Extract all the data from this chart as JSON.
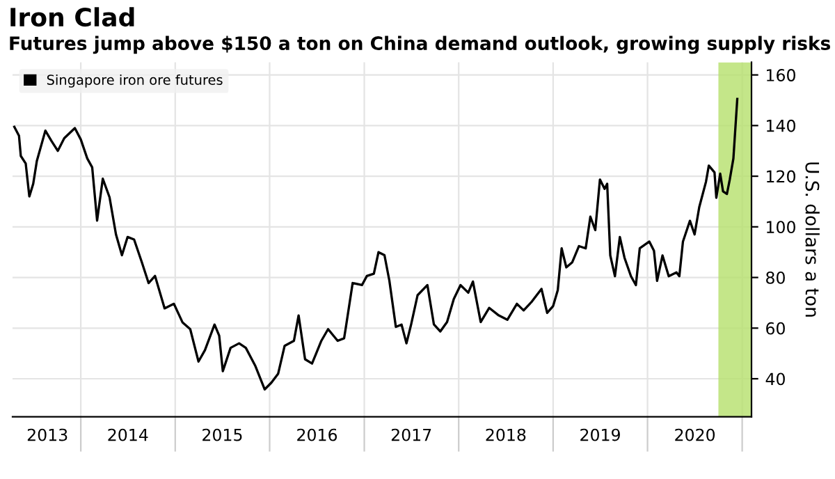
{
  "chart_data": {
    "type": "line",
    "title": "Iron Clad",
    "subtitle": "Futures jump above $150 a ton on China demand outlook, growing supply risks",
    "ylabel": "U.S. dollars a ton",
    "x": [
      "2013-04-19",
      "2013-05-07",
      "2013-05-14",
      "2013-06-02",
      "2013-06-16",
      "2013-07-01",
      "2013-07-15",
      "2013-08-17",
      "2013-09-09",
      "2013-10-04",
      "2013-10-29",
      "2013-12-09",
      "2014-01-01",
      "2014-01-26",
      "2014-02-14",
      "2014-03-05",
      "2014-03-27",
      "2014-04-22",
      "2014-05-17",
      "2014-06-09",
      "2014-07-01",
      "2014-07-26",
      "2014-08-25",
      "2014-09-20",
      "2014-10-15",
      "2014-11-21",
      "2014-12-27",
      "2015-01-29",
      "2015-02-28",
      "2015-04-01",
      "2015-04-26",
      "2015-06-02",
      "2015-06-20",
      "2015-07-04",
      "2015-08-03",
      "2015-09-05",
      "2015-10-01",
      "2015-11-07",
      "2015-12-13",
      "2016-01-08",
      "2016-02-03",
      "2016-02-28",
      "2016-04-04",
      "2016-04-22",
      "2016-05-17",
      "2016-06-13",
      "2016-07-19",
      "2016-08-14",
      "2016-09-20",
      "2016-10-15",
      "2016-10-22",
      "2016-11-17",
      "2016-12-23",
      "2017-01-11",
      "2017-02-07",
      "2017-02-25",
      "2017-03-20",
      "2017-04-08",
      "2017-05-03",
      "2017-05-25",
      "2017-06-13",
      "2017-07-01",
      "2017-07-26",
      "2017-09-02",
      "2017-09-27",
      "2017-10-22",
      "2017-11-17",
      "2017-12-13",
      "2018-01-08",
      "2018-02-07",
      "2018-02-25",
      "2018-03-27",
      "2018-04-29",
      "2018-06-05",
      "2018-07-08",
      "2018-08-14",
      "2018-09-09",
      "2018-10-11",
      "2018-11-17",
      "2018-12-09",
      "2019-01-01",
      "2019-01-19",
      "2019-02-03",
      "2019-02-21",
      "2019-03-16",
      "2019-04-11",
      "2019-05-07",
      "2019-05-25",
      "2019-06-13",
      "2019-07-01",
      "2019-07-19",
      "2019-07-29",
      "2019-08-10",
      "2019-08-28",
      "2019-09-16",
      "2019-10-04",
      "2019-10-29",
      "2019-11-17",
      "2019-12-02",
      "2020-01-08",
      "2020-01-26",
      "2020-02-07",
      "2020-02-28",
      "2020-03-23",
      "2020-04-22",
      "2020-05-03",
      "2020-05-17",
      "2020-06-13",
      "2020-07-01",
      "2020-07-19",
      "2020-08-14",
      "2020-08-25",
      "2020-09-16",
      "2020-09-23",
      "2020-10-08",
      "2020-10-19",
      "2020-11-03",
      "2020-11-14",
      "2020-11-28",
      "2020-12-13"
    ],
    "series": [
      {
        "name": "Singapore iron ore futures",
        "color": "#000000",
        "values": [
          139.5,
          136,
          128,
          125,
          112,
          117,
          126,
          138,
          134,
          130,
          135,
          139,
          134.5,
          127,
          123.5,
          102.5,
          119,
          111.7,
          97,
          88.8,
          96,
          95,
          86,
          77.8,
          80.6,
          67.8,
          69.6,
          62.3,
          59.6,
          46.8,
          51.3,
          61.4,
          57,
          43,
          52.2,
          54,
          52.2,
          45,
          35.8,
          38.5,
          42,
          53,
          55,
          65,
          47.7,
          46,
          55,
          59.6,
          55,
          56,
          60.5,
          77.8,
          77,
          80.6,
          81.5,
          90,
          88.8,
          78.7,
          60.5,
          61.4,
          54,
          61.4,
          73,
          77,
          61.5,
          58.7,
          62.4,
          71.5,
          77,
          74,
          78.4,
          62.4,
          68,
          65,
          63.3,
          69.6,
          67,
          70.5,
          75.5,
          66,
          68.7,
          75,
          91.5,
          84,
          86,
          92.4,
          91.5,
          104,
          98.7,
          118.7,
          115,
          117,
          88.7,
          80.5,
          96,
          87.8,
          80.5,
          77,
          91.5,
          94.2,
          90.5,
          78.7,
          88.7,
          80.5,
          82,
          80.5,
          94.2,
          102.4,
          97,
          107.8,
          117.8,
          124.2,
          121.5,
          111.5,
          121,
          114,
          113,
          118.7,
          127,
          150.5
        ]
      }
    ],
    "xlim": [
      "2013-04-12",
      "2021-02-06"
    ],
    "ylim": [
      25,
      165
    ],
    "xticks": [
      {
        "value": "2013-08-25",
        "label": "2013"
      },
      {
        "value": "2014-01-01",
        "label": null
      },
      {
        "value": "2014-07-02",
        "label": "2014"
      },
      {
        "value": "2015-01-01",
        "label": null
      },
      {
        "value": "2015-07-02",
        "label": "2015"
      },
      {
        "value": "2016-01-01",
        "label": null
      },
      {
        "value": "2016-07-02",
        "label": "2016"
      },
      {
        "value": "2017-01-01",
        "label": null
      },
      {
        "value": "2017-07-02",
        "label": "2017"
      },
      {
        "value": "2018-01-01",
        "label": null
      },
      {
        "value": "2018-07-02",
        "label": "2018"
      },
      {
        "value": "2019-01-01",
        "label": null
      },
      {
        "value": "2019-07-02",
        "label": "2019"
      },
      {
        "value": "2020-01-01",
        "label": null
      },
      {
        "value": "2020-07-02",
        "label": "2020"
      },
      {
        "value": "2021-01-01",
        "label": null
      }
    ],
    "yticks": [
      40,
      60,
      80,
      100,
      120,
      140,
      160
    ],
    "bands": [
      {
        "axis": "x",
        "from": "2020-10-01",
        "to": "2021-02-06",
        "color": "#b5e06b"
      }
    ],
    "grid": true,
    "legend": "top left",
    "marker": "none",
    "line_style": "solid"
  }
}
